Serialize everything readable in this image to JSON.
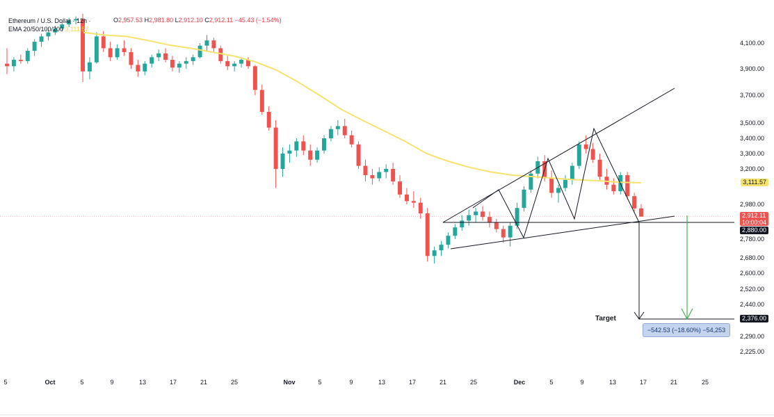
{
  "legend": {
    "symbol": "Ethereum / U.S. Dollar · 12h ·",
    "ema_label": "EMA 20/50/100/200",
    "ema_value": "3,111.57",
    "ohlc": {
      "o_key": "O",
      "o_val": "2,957.53",
      "h_key": "H",
      "h_val": "2,981.80",
      "l_key": "L",
      "l_val": "2,912.10",
      "c_key": "C",
      "c_val": "2,912.11",
      "change": "−45.43 (−1.54%)"
    }
  },
  "price_labels": {
    "ema_tag": "3,111.57",
    "last_price": "2,912.11",
    "countdown": "10:00:04",
    "support_tag": "2,880.00",
    "target_tag": "2,376.00"
  },
  "annotations": {
    "target_text": "Target",
    "measure_text": "−542.53 (−18.60%) −54,253"
  },
  "colors": {
    "up": "#26a69a",
    "down": "#ef5350",
    "ema": "#f6e36e",
    "trendline": "#131722",
    "arrow_green": "#4caf50",
    "measure_bg": "#c4d4ee"
  },
  "chart_data": {
    "type": "candlestick",
    "title": "Ethereum / U.S. Dollar · 12h",
    "y_ticks": [
      4100,
      3900,
      3700,
      3500,
      3400,
      3300,
      3200,
      2980,
      2780,
      2680,
      2600,
      2520,
      2440,
      2290,
      2225
    ],
    "y_tick_labels": [
      "4,100.00",
      "3,900.00",
      "3,700.00",
      "3,500.00",
      "3,400.00",
      "3,300.00",
      "3,200.00",
      "2,980.00",
      "2,780.00",
      "2,680.00",
      "2,600.00",
      "2,520.00",
      "2,440.00",
      "2,290.00",
      "2,225.00"
    ],
    "x_tick_labels": [
      {
        "label": "5",
        "bold": false
      },
      {
        "label": "Oct",
        "bold": true
      },
      {
        "label": "5",
        "bold": false
      },
      {
        "label": "9",
        "bold": false
      },
      {
        "label": "13",
        "bold": false
      },
      {
        "label": "17",
        "bold": false
      },
      {
        "label": "21",
        "bold": false
      },
      {
        "label": "25",
        "bold": false
      },
      {
        "label": "Nov",
        "bold": true
      },
      {
        "label": "5",
        "bold": false
      },
      {
        "label": "9",
        "bold": false
      },
      {
        "label": "13",
        "bold": false
      },
      {
        "label": "17",
        "bold": false
      },
      {
        "label": "21",
        "bold": false
      },
      {
        "label": "25",
        "bold": false
      },
      {
        "label": "Dec",
        "bold": true
      },
      {
        "label": "5",
        "bold": false
      },
      {
        "label": "9",
        "bold": false
      },
      {
        "label": "13",
        "bold": false
      },
      {
        "label": "17",
        "bold": false
      },
      {
        "label": "21",
        "bold": false
      },
      {
        "label": "25",
        "bold": false
      }
    ],
    "ema_series": [
      4180,
      4160,
      4150,
      4120,
      4085,
      4060,
      4030,
      4000,
      3955,
      3890,
      3800,
      3700,
      3600,
      3520,
      3450,
      3380,
      3300,
      3250,
      3210,
      3180,
      3160,
      3150,
      3140,
      3130,
      3125,
      3115,
      3111.57
    ],
    "levels": {
      "resistance_support": 2880,
      "last_price": 2912.11,
      "target": 2376,
      "measured_move": -542.53,
      "measured_move_pct": -18.6
    },
    "candles": [
      [
        3940,
        4060,
        3860,
        3920
      ],
      [
        3920,
        3990,
        3880,
        3970
      ],
      [
        3970,
        4010,
        3940,
        3960
      ],
      [
        3960,
        4060,
        3940,
        4040
      ],
      [
        4040,
        4130,
        4000,
        4110
      ],
      [
        4110,
        4170,
        4070,
        4150
      ],
      [
        4150,
        4200,
        4120,
        4180
      ],
      [
        4180,
        4230,
        4160,
        4210
      ],
      [
        4210,
        4260,
        4190,
        4240
      ],
      [
        4240,
        4290,
        4220,
        4270
      ],
      [
        4270,
        4300,
        4240,
        4280
      ],
      [
        4280,
        4320,
        3800,
        3880
      ],
      [
        3880,
        3990,
        3820,
        3950
      ],
      [
        3950,
        4180,
        3940,
        4150
      ],
      [
        4150,
        4190,
        4030,
        4060
      ],
      [
        4060,
        4110,
        3960,
        3990
      ],
      [
        3990,
        4090,
        3970,
        4060
      ],
      [
        4060,
        4120,
        4000,
        4030
      ],
      [
        4030,
        4060,
        3900,
        3930
      ],
      [
        3930,
        3970,
        3840,
        3880
      ],
      [
        3880,
        3960,
        3850,
        3940
      ],
      [
        3940,
        4010,
        3910,
        3990
      ],
      [
        3990,
        4050,
        3960,
        4020
      ],
      [
        4020,
        4060,
        3950,
        3970
      ],
      [
        3970,
        4000,
        3880,
        3910
      ],
      [
        3910,
        3960,
        3870,
        3940
      ],
      [
        3940,
        3990,
        3900,
        3960
      ],
      [
        3960,
        4010,
        3930,
        3990
      ],
      [
        3990,
        4100,
        3980,
        4080
      ],
      [
        4080,
        4160,
        4040,
        4120
      ],
      [
        4120,
        4140,
        4030,
        4060
      ],
      [
        4060,
        4080,
        3940,
        3960
      ],
      [
        3960,
        4000,
        3890,
        3920
      ],
      [
        3920,
        3960,
        3880,
        3940
      ],
      [
        3940,
        3990,
        3910,
        3970
      ],
      [
        3970,
        3990,
        3900,
        3920
      ],
      [
        3920,
        3930,
        3700,
        3740
      ],
      [
        3740,
        3780,
        3560,
        3580
      ],
      [
        3580,
        3620,
        3450,
        3470
      ],
      [
        3470,
        3520,
        3080,
        3200
      ],
      [
        3200,
        3340,
        3150,
        3300
      ],
      [
        3300,
        3360,
        3240,
        3320
      ],
      [
        3320,
        3400,
        3280,
        3380
      ],
      [
        3380,
        3420,
        3290,
        3320
      ],
      [
        3320,
        3360,
        3220,
        3260
      ],
      [
        3260,
        3340,
        3240,
        3320
      ],
      [
        3320,
        3420,
        3300,
        3400
      ],
      [
        3400,
        3480,
        3380,
        3460
      ],
      [
        3460,
        3520,
        3420,
        3480
      ],
      [
        3480,
        3530,
        3400,
        3420
      ],
      [
        3420,
        3450,
        3340,
        3360
      ],
      [
        3360,
        3380,
        3200,
        3220
      ],
      [
        3220,
        3260,
        3120,
        3160
      ],
      [
        3160,
        3200,
        3100,
        3140
      ],
      [
        3140,
        3210,
        3120,
        3180
      ],
      [
        3180,
        3230,
        3140,
        3200
      ],
      [
        3200,
        3240,
        3100,
        3120
      ],
      [
        3120,
        3160,
        3020,
        3040
      ],
      [
        3040,
        3080,
        2980,
        3000
      ],
      [
        3000,
        3060,
        2960,
        2990
      ],
      [
        2990,
        3020,
        2900,
        2930
      ],
      [
        2930,
        2960,
        2660,
        2690
      ],
      [
        2690,
        2740,
        2650,
        2720
      ],
      [
        2720,
        2770,
        2690,
        2750
      ],
      [
        2750,
        2820,
        2730,
        2800
      ],
      [
        2800,
        2870,
        2780,
        2850
      ],
      [
        2850,
        2920,
        2830,
        2890
      ],
      [
        2890,
        2950,
        2860,
        2920
      ],
      [
        2920,
        2960,
        2880,
        2940
      ],
      [
        2940,
        2970,
        2890,
        2910
      ],
      [
        2910,
        2940,
        2850,
        2880
      ],
      [
        2880,
        2900,
        2820,
        2840
      ],
      [
        2840,
        2860,
        2760,
        2790
      ],
      [
        2790,
        2880,
        2740,
        2860
      ],
      [
        2860,
        2990,
        2840,
        2960
      ],
      [
        2960,
        3090,
        2940,
        3070
      ],
      [
        3070,
        3190,
        3050,
        3170
      ],
      [
        3170,
        3280,
        3140,
        3250
      ],
      [
        3250,
        3290,
        3120,
        3140
      ],
      [
        3140,
        3190,
        3020,
        3050
      ],
      [
        3050,
        3100,
        2990,
        3080
      ],
      [
        3080,
        3160,
        3060,
        3130
      ],
      [
        3130,
        3240,
        3100,
        3220
      ],
      [
        3220,
        3380,
        3200,
        3360
      ],
      [
        3360,
        3420,
        3300,
        3330
      ],
      [
        3330,
        3370,
        3240,
        3260
      ],
      [
        3260,
        3300,
        3130,
        3150
      ],
      [
        3150,
        3200,
        3070,
        3100
      ],
      [
        3100,
        3140,
        3040,
        3060
      ],
      [
        3060,
        3180,
        3040,
        3160
      ],
      [
        3160,
        3180,
        3010,
        3030
      ],
      [
        3030,
        3050,
        2940,
        2957.53
      ],
      [
        2957.53,
        2981.8,
        2912.1,
        2912.11
      ]
    ]
  }
}
